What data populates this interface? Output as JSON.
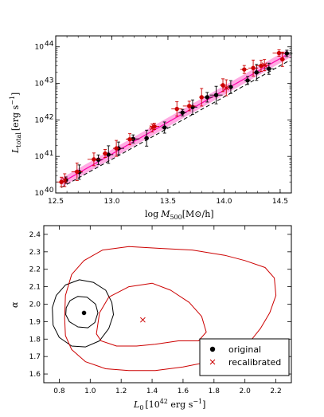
{
  "chart_data": [
    {
      "type": "scatter",
      "panel": "top",
      "xlabel": "log M500 [M⊙/h]",
      "ylabel": "L_total [erg s^-1]",
      "xlim": [
        12.5,
        14.6
      ],
      "ylim_log10": [
        40,
        44.3
      ],
      "y_scale": "log",
      "xticks": [
        "12.5",
        "13.0",
        "13.5",
        "14.0",
        "14.5"
      ],
      "yticks": [
        "10^40",
        "10^41",
        "10^42",
        "10^43",
        "10^44"
      ],
      "grid": false,
      "legend": "none",
      "colors": {
        "original": "#000000",
        "recalibrated": "#cc0000",
        "band": "#ff66cc"
      },
      "series": [
        {
          "marker": "circle",
          "color": "#000000",
          "points": [
            {
              "x": 12.59,
              "log10y": 40.35
            },
            {
              "x": 12.71,
              "log10y": 40.57
            },
            {
              "x": 12.88,
              "log10y": 40.91
            },
            {
              "x": 12.97,
              "log10y": 41.05
            },
            {
              "x": 13.06,
              "log10y": 41.22
            },
            {
              "x": 13.19,
              "log10y": 41.48
            },
            {
              "x": 13.31,
              "log10y": 41.5
            },
            {
              "x": 13.47,
              "log10y": 41.79
            },
            {
              "x": 13.63,
              "log10y": 42.2
            },
            {
              "x": 13.72,
              "log10y": 42.35
            },
            {
              "x": 13.85,
              "log10y": 42.62
            },
            {
              "x": 13.93,
              "log10y": 42.68
            },
            {
              "x": 14.06,
              "log10y": 42.9
            },
            {
              "x": 14.21,
              "log10y": 43.08
            },
            {
              "x": 14.29,
              "log10y": 43.3
            },
            {
              "x": 14.4,
              "log10y": 43.4
            },
            {
              "x": 14.56,
              "log10y": 43.82
            }
          ]
        },
        {
          "marker": "circle",
          "color": "#cc0000",
          "points": [
            {
              "x": 12.55,
              "log10y": 40.3
            },
            {
              "x": 12.69,
              "log10y": 40.58
            },
            {
              "x": 12.84,
              "log10y": 40.92
            },
            {
              "x": 12.94,
              "log10y": 41.08
            },
            {
              "x": 13.04,
              "log10y": 41.22
            },
            {
              "x": 13.16,
              "log10y": 41.47
            },
            {
              "x": 13.38,
              "log10y": 41.82
            },
            {
              "x": 13.58,
              "log10y": 42.3
            },
            {
              "x": 13.69,
              "log10y": 42.38
            },
            {
              "x": 13.8,
              "log10y": 42.62
            },
            {
              "x": 13.99,
              "log10y": 42.95
            },
            {
              "x": 14.18,
              "log10y": 43.38
            },
            {
              "x": 14.26,
              "log10y": 43.42
            },
            {
              "x": 14.33,
              "log10y": 43.48
            },
            {
              "x": 14.49,
              "log10y": 43.83
            },
            {
              "x": 14.52,
              "log10y": 43.66
            }
          ]
        },
        {
          "marker": "x",
          "color": "#cc0000",
          "points": [
            {
              "x": 12.58,
              "log10y": 40.35
            },
            {
              "x": 13.36,
              "log10y": 41.78
            },
            {
              "x": 14.02,
              "log10y": 42.88
            },
            {
              "x": 14.36,
              "log10y": 43.5
            }
          ]
        }
      ],
      "relations": [
        {
          "style": "dashed",
          "color": "#000000",
          "points": [
            [
              12.55,
              40.15
            ],
            [
              14.58,
              43.62
            ]
          ]
        },
        {
          "style": "band",
          "color": "#ff66cc",
          "points": [
            [
              12.55,
              40.28
            ],
            [
              14.58,
              43.82
            ]
          ]
        }
      ]
    },
    {
      "type": "scatter",
      "panel": "bottom",
      "xlabel": "L0 [10^42 erg s^-1]",
      "ylabel": "α",
      "xlim": [
        0.7,
        2.3
      ],
      "ylim": [
        1.55,
        2.45
      ],
      "xticks": [
        "0.8",
        "1.0",
        "1.2",
        "1.4",
        "1.6",
        "1.8",
        "2.0",
        "2.2"
      ],
      "yticks": [
        "1.6",
        "1.7",
        "1.8",
        "1.9",
        "2.0",
        "2.1",
        "2.2",
        "2.3",
        "2.4"
      ],
      "grid": false,
      "legend": "bottom-right",
      "series": [
        {
          "name": "original",
          "marker": "circle",
          "color": "#000000",
          "points": [
            {
              "x": 0.96,
              "y": 1.95
            }
          ]
        },
        {
          "name": "recalibrated",
          "marker": "x",
          "color": "#cc0000",
          "points": [
            {
              "x": 1.34,
              "y": 1.91
            }
          ]
        }
      ],
      "contours": [
        {
          "color": "#000000",
          "points": [
            [
              0.845,
              1.98
            ],
            [
              0.87,
              2.02
            ],
            [
              0.92,
              2.045
            ],
            [
              0.98,
              2.04
            ],
            [
              1.035,
              2.0
            ],
            [
              1.05,
              1.95
            ],
            [
              1.03,
              1.895
            ],
            [
              0.985,
              1.865
            ],
            [
              0.92,
              1.87
            ],
            [
              0.865,
              1.9
            ],
            [
              0.842,
              1.94
            ],
            [
              0.845,
              1.98
            ]
          ]
        },
        {
          "color": "#000000",
          "points": [
            [
              0.755,
              1.98
            ],
            [
              0.78,
              2.05
            ],
            [
              0.84,
              2.11
            ],
            [
              0.93,
              2.14
            ],
            [
              1.02,
              2.125
            ],
            [
              1.1,
              2.08
            ],
            [
              1.14,
              2.01
            ],
            [
              1.15,
              1.94
            ],
            [
              1.12,
              1.86
            ],
            [
              1.06,
              1.79
            ],
            [
              0.97,
              1.755
            ],
            [
              0.88,
              1.76
            ],
            [
              0.8,
              1.81
            ],
            [
              0.76,
              1.88
            ],
            [
              0.755,
              1.98
            ]
          ]
        },
        {
          "color": "#cc0000",
          "points": [
            [
              1.04,
              1.83
            ],
            [
              1.06,
              1.95
            ],
            [
              1.12,
              2.04
            ],
            [
              1.25,
              2.1
            ],
            [
              1.4,
              2.12
            ],
            [
              1.52,
              2.08
            ],
            [
              1.64,
              2.01
            ],
            [
              1.72,
              1.93
            ],
            [
              1.75,
              1.84
            ],
            [
              1.7,
              1.79
            ],
            [
              1.57,
              1.79
            ],
            [
              1.42,
              1.77
            ],
            [
              1.3,
              1.76
            ],
            [
              1.17,
              1.76
            ],
            [
              1.07,
              1.79
            ],
            [
              1.04,
              1.83
            ]
          ]
        },
        {
          "color": "#cc0000",
          "points": [
            [
              0.835,
              1.92
            ],
            [
              0.84,
              2.05
            ],
            [
              0.88,
              2.17
            ],
            [
              0.96,
              2.25
            ],
            [
              1.08,
              2.31
            ],
            [
              1.25,
              2.33
            ],
            [
              1.45,
              2.32
            ],
            [
              1.66,
              2.31
            ],
            [
              1.87,
              2.28
            ],
            [
              2.0,
              2.25
            ],
            [
              2.13,
              2.21
            ],
            [
              2.19,
              2.15
            ],
            [
              2.2,
              2.05
            ],
            [
              2.16,
              1.95
            ],
            [
              2.1,
              1.86
            ],
            [
              2.01,
              1.76
            ],
            [
              1.91,
              1.71
            ],
            [
              1.77,
              1.67
            ],
            [
              1.6,
              1.64
            ],
            [
              1.42,
              1.62
            ],
            [
              1.25,
              1.62
            ],
            [
              1.1,
              1.63
            ],
            [
              0.97,
              1.67
            ],
            [
              0.88,
              1.74
            ],
            [
              0.84,
              1.82
            ],
            [
              0.835,
              1.92
            ]
          ]
        }
      ]
    }
  ],
  "top": {
    "x_ticks": [
      "12.5",
      "13.0",
      "13.5",
      "14.0",
      "14.5"
    ],
    "y_tick_base": "10",
    "y_tick_exps": [
      "40",
      "41",
      "42",
      "43",
      "44"
    ],
    "xlabel_log": "log",
    "xlabel_M": "M",
    "xlabel_sub": "500",
    "xlabel_unit": "[M",
    "xlabel_sun": "⊙",
    "xlabel_tail": "/h]",
    "ylabel_L": "L",
    "ylabel_sub": "total",
    "ylabel_unit": "[erg s",
    "ylabel_exp": "−1",
    "ylabel_close": "]"
  },
  "bottom": {
    "x_ticks": [
      "0.8",
      "1.0",
      "1.2",
      "1.4",
      "1.6",
      "1.8",
      "2.0",
      "2.2"
    ],
    "y_ticks": [
      "1.6",
      "1.7",
      "1.8",
      "1.9",
      "2.0",
      "2.1",
      "2.2",
      "2.3",
      "2.4"
    ],
    "xlabel_L": "L",
    "xlabel_sub": "0",
    "xlabel_unit": "[10",
    "xlabel_exp1": "42",
    "xlabel_mid": " erg s",
    "xlabel_exp2": "−1",
    "xlabel_close": "]",
    "ylabel": "α",
    "legend_original": "original",
    "legend_recalibrated": "recalibrated"
  }
}
